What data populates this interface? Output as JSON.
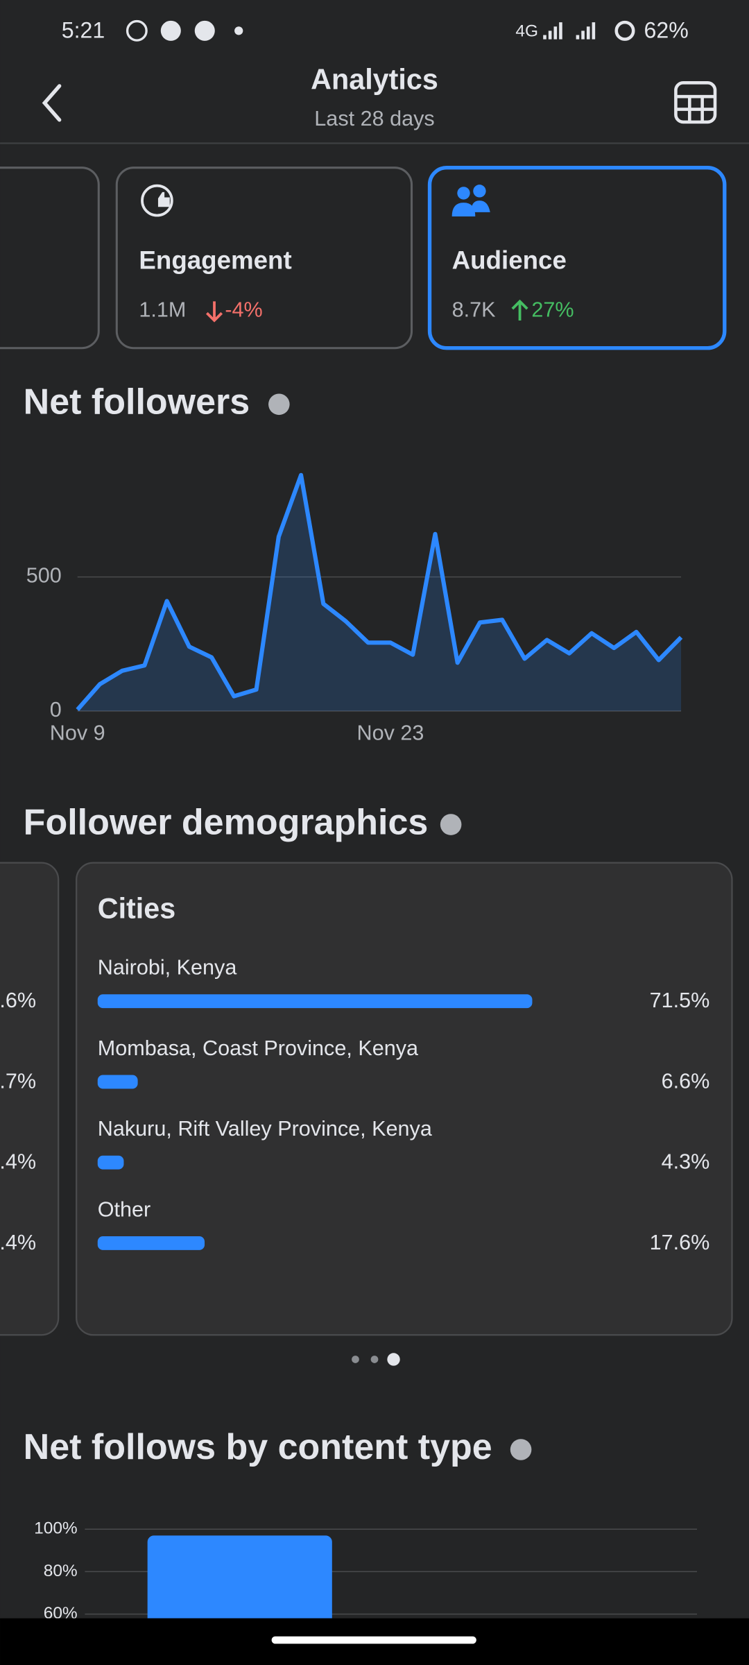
{
  "status_bar": {
    "time": "5:21",
    "network": "4G",
    "battery": "62%"
  },
  "header": {
    "title": "Analytics",
    "subtitle": "Last 28 days"
  },
  "summary_cards": [
    {
      "title": "Engagement",
      "value": "1.1M",
      "change": "-4%"
    },
    {
      "title": "Audience",
      "value": "8.7K",
      "change": "27%",
      "selected": true
    }
  ],
  "net_followers": {
    "title": "Net followers",
    "chart": {
      "type": "area",
      "categories": [
        "Nov 9",
        null,
        null,
        null,
        null,
        null,
        null,
        null,
        null,
        null,
        null,
        null,
        null,
        null,
        "Nov 23",
        null,
        null,
        null,
        null,
        null,
        null,
        null,
        null,
        null,
        null,
        null,
        null,
        null
      ],
      "values": [
        5,
        100,
        150,
        170,
        410,
        240,
        200,
        55,
        80,
        650,
        880,
        400,
        335,
        255,
        255,
        210,
        660,
        180,
        330,
        340,
        195,
        265,
        215,
        290,
        235,
        295,
        190,
        275
      ],
      "ylim": [
        0,
        950
      ],
      "yticks": [
        0,
        500
      ],
      "grid": true,
      "color": "#2d88ff"
    }
  },
  "follower_demographics": {
    "title": "Follower demographics",
    "previous_card_values": [
      ".6%",
      ".7%",
      ".4%",
      ".4%"
    ],
    "cities": {
      "title": "Cities",
      "type": "bar",
      "categories": [
        "Nairobi, Kenya",
        "Mombasa, Coast Province, Kenya",
        "Nakuru, Rift Valley Province, Kenya",
        "Other"
      ],
      "values": [
        71.5,
        6.6,
        4.3,
        17.6
      ],
      "value_labels": [
        "71.5%",
        "6.6%",
        "4.3%",
        "17.6%"
      ],
      "xlim": [
        0,
        100
      ],
      "color": "#2d88ff"
    },
    "page_count": 3,
    "current_page": 2
  },
  "net_follows_by_content_type": {
    "title": "Net follows by content type",
    "chart": {
      "type": "bar",
      "categories": [
        null
      ],
      "values": [
        97
      ],
      "ylim": [
        0,
        100
      ],
      "yticks": [
        {
          "value": 60,
          "label": "60%"
        },
        {
          "value": 80,
          "label": "80%"
        },
        {
          "value": 100,
          "label": "100%"
        }
      ],
      "grid": true,
      "color": "#2d88ff"
    }
  }
}
